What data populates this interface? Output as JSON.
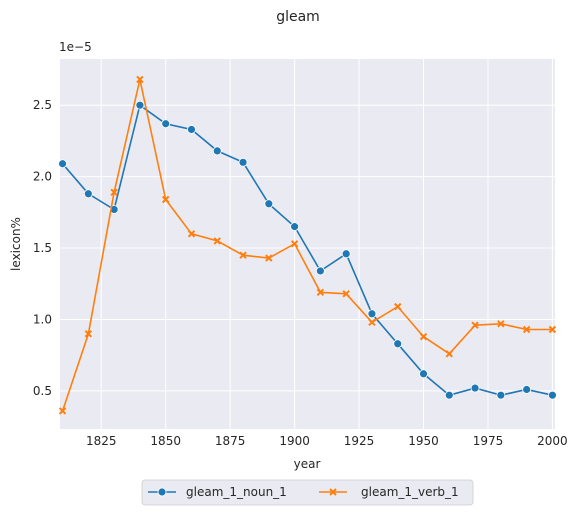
{
  "chart_data": {
    "type": "line",
    "title": "gleam",
    "xlabel": "year",
    "ylabel": "lexicon%",
    "y_offset_label": "1e−5",
    "xlim": [
      1809,
      2001
    ],
    "ylim": [
      2.335e-06,
      2.8233e-05
    ],
    "xticks": [
      1825,
      1850,
      1875,
      1900,
      1925,
      1950,
      1975,
      2000
    ],
    "yticks": [
      5e-06,
      1e-05,
      1.5e-05,
      2e-05,
      2.5e-05
    ],
    "ytick_labels": [
      "0.5",
      "1.0",
      "1.5",
      "2.0",
      "2.5"
    ],
    "grid": true,
    "legend_position": "below center",
    "x": [
      1810,
      1820,
      1830,
      1840,
      1850,
      1860,
      1870,
      1880,
      1890,
      1900,
      1910,
      1920,
      1930,
      1940,
      1950,
      1960,
      1970,
      1980,
      1990,
      2000
    ],
    "series": [
      {
        "name": "gleam_1_noun_1",
        "color": "#1f77b4",
        "marker": "circle",
        "values": [
          2.09e-05,
          1.88e-05,
          1.77e-05,
          2.5e-05,
          2.37e-05,
          2.33e-05,
          2.18e-05,
          2.1e-05,
          1.81e-05,
          1.65e-05,
          1.34e-05,
          1.46e-05,
          1.04e-05,
          8.3e-06,
          6.2e-06,
          4.7e-06,
          5.2e-06,
          4.7e-06,
          5.1e-06,
          4.7e-06
        ]
      },
      {
        "name": "gleam_1_verb_1",
        "color": "#ff7f0e",
        "marker": "x",
        "values": [
          3.6e-06,
          9e-06,
          1.89e-05,
          2.68e-05,
          1.84e-05,
          1.6e-05,
          1.55e-05,
          1.45e-05,
          1.43e-05,
          1.53e-05,
          1.19e-05,
          1.18e-05,
          9.8e-06,
          1.09e-05,
          8.8e-06,
          7.6e-06,
          9.6e-06,
          9.7e-06,
          9.3e-06,
          9.3e-06
        ]
      }
    ]
  }
}
